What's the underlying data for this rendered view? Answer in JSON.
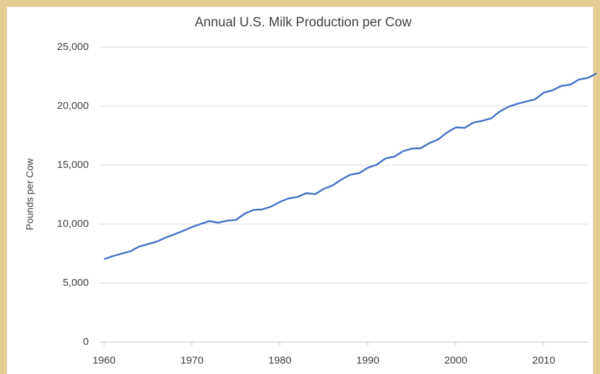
{
  "chart_data": {
    "type": "line",
    "title": "Annual U.S. Milk Production per Cow",
    "y_label": "Pounds per Cow",
    "x": [
      1960,
      1961,
      1962,
      1963,
      1964,
      1965,
      1966,
      1967,
      1968,
      1969,
      1970,
      1971,
      1972,
      1973,
      1974,
      1975,
      1976,
      1977,
      1978,
      1979,
      1980,
      1981,
      1982,
      1983,
      1984,
      1985,
      1986,
      1987,
      1988,
      1989,
      1990,
      1991,
      1992,
      1993,
      1994,
      1995,
      1996,
      1997,
      1998,
      1999,
      2000,
      2001,
      2002,
      2003,
      2004,
      2005,
      2006,
      2007,
      2008,
      2009,
      2010,
      2011,
      2012,
      2013,
      2014,
      2015,
      2016
    ],
    "values": [
      7029,
      7290,
      7496,
      7700,
      8099,
      8305,
      8522,
      8851,
      9135,
      9434,
      9751,
      10015,
      10259,
      10119,
      10293,
      10360,
      10894,
      11206,
      11243,
      11488,
      11891,
      12183,
      12306,
      12622,
      12541,
      12994,
      13285,
      13786,
      14185,
      14323,
      14782,
      15031,
      15570,
      15722,
      16179,
      16405,
      16433,
      16871,
      17185,
      17763,
      18201,
      18162,
      18608,
      18759,
      18960,
      19550,
      19951,
      20204,
      20395,
      20576,
      21149,
      21345,
      21722,
      21816,
      22259,
      22393,
      22774
    ],
    "color": "#4472c4",
    "xlim": [
      1960,
      2016
    ],
    "xticks": [
      1960,
      1970,
      1980,
      1990,
      2000,
      2010
    ],
    "ylim": [
      0,
      25000
    ],
    "yticks": [
      0,
      {
        "value": 5000,
        "label": "5,000"
      },
      {
        "value": 10000,
        "label": "10,000"
      },
      {
        "value": 15000,
        "label": "15,000"
      },
      {
        "value": 20000,
        "label": "20,000"
      },
      {
        "value": 25000,
        "label": "25,000"
      }
    ],
    "grid": true
  }
}
